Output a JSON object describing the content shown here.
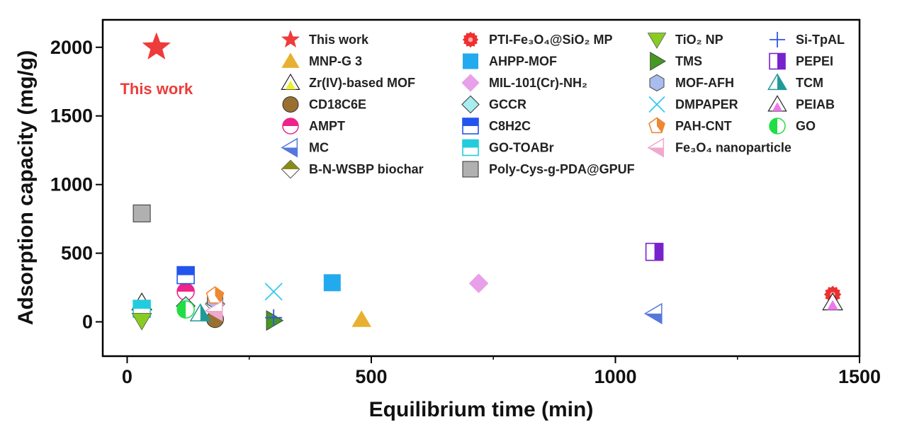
{
  "chart_data": {
    "type": "scatter",
    "xlabel": "Equilibrium time (min)",
    "ylabel": "Adsorption capacity (mg/g)",
    "xlim": [
      -50,
      1500
    ],
    "ylim": [
      -250,
      2200
    ],
    "xticks": [
      0,
      500,
      1000,
      1500
    ],
    "yticks": [
      0,
      500,
      1000,
      1500,
      2000
    ],
    "xtick_labels": [
      "0",
      "500",
      "1000",
      "1500"
    ],
    "ytick_labels": [
      "0",
      "500",
      "1000",
      "1500",
      "2000"
    ],
    "x_minor_ticks": [
      250,
      750,
      1250
    ],
    "grid": false,
    "legend_position": "inside-top",
    "annotation": {
      "text": "This work",
      "x": 60,
      "y": 1700,
      "color": "#ee3b3b"
    },
    "series": [
      {
        "name": "This work",
        "marker": "star",
        "color": "#ee3b3b",
        "points": [
          [
            60,
            2000
          ]
        ]
      },
      {
        "name": "MNP-G 3",
        "marker": "triangle-up",
        "color": "#e8b030",
        "points": [
          [
            480,
            15
          ]
        ]
      },
      {
        "name": "Zr(IV)-based MOF",
        "marker": "triangle-up-open",
        "color": "#eeee33",
        "points": [
          [
            30,
            140
          ]
        ]
      },
      {
        "name": "CD18C6E",
        "marker": "circle",
        "color": "#9a7030",
        "points": [
          [
            180,
            20
          ]
        ]
      },
      {
        "name": "AMPT",
        "marker": "circle-half",
        "color": "#ee2288",
        "points": [
          [
            120,
            220
          ]
        ]
      },
      {
        "name": "MC",
        "marker": "triangle-left",
        "color": "#5577dd",
        "points": [
          [
            1080,
            60
          ]
        ]
      },
      {
        "name": "B-N-WSBP biochar",
        "marker": "diamond-half",
        "color": "#8a8a1a",
        "points": [
          [
            180,
            130
          ]
        ]
      },
      {
        "name": "PTI-Fe₃O₄@SiO₂ MP",
        "marker": "circle-spiky",
        "color": "#ee3030",
        "points": [
          [
            1445,
            200
          ]
        ]
      },
      {
        "name": "AHPP-MOF",
        "marker": "square",
        "color": "#22aaee",
        "points": [
          [
            420,
            285
          ]
        ]
      },
      {
        "name": "MIL-101(Cr)-NH₂",
        "marker": "diamond",
        "color": "#e8a0e8",
        "points": [
          [
            720,
            280
          ]
        ]
      },
      {
        "name": "GCCR",
        "marker": "diamond-light",
        "color": "#a8eeee",
        "points": [
          [
            120,
            115
          ]
        ]
      },
      {
        "name": "C8H2C",
        "marker": "square-half",
        "color": "#2255ee",
        "points": [
          [
            120,
            340
          ]
        ]
      },
      {
        "name": "GO-TOABr",
        "marker": "square-half",
        "color": "#22ccdd",
        "points": [
          [
            30,
            95
          ]
        ]
      },
      {
        "name": "Poly-Cys-g-PDA@GPUF",
        "marker": "square",
        "color": "#b0b0b0",
        "points": [
          [
            30,
            790
          ]
        ]
      },
      {
        "name": "TiO₂ NP",
        "marker": "triangle-down",
        "color": "#88cc22",
        "points": [
          [
            30,
            10
          ]
        ]
      },
      {
        "name": "TMS",
        "marker": "triangle-right",
        "color": "#449922",
        "points": [
          [
            300,
            10
          ]
        ]
      },
      {
        "name": "MOF-AFH",
        "marker": "hexagon",
        "color": "#aabbee",
        "points": [
          [
            180,
            160
          ]
        ]
      },
      {
        "name": "DMPAPER",
        "marker": "x",
        "color": "#33ccee",
        "points": [
          [
            300,
            220
          ]
        ]
      },
      {
        "name": "PAH-CNT",
        "marker": "pentagon",
        "color": "#ee8833",
        "points": [
          [
            180,
            190
          ]
        ]
      },
      {
        "name": "Fe₃O₄ nanoparticle",
        "marker": "triangle-left",
        "color": "#eeaacc",
        "points": [
          [
            180,
            80
          ]
        ]
      },
      {
        "name": "Si-TpAL",
        "marker": "plus",
        "color": "#3355dd",
        "points": [
          [
            300,
            30
          ]
        ]
      },
      {
        "name": "PEPEI",
        "marker": "square-vhalf",
        "color": "#7722cc",
        "points": [
          [
            1080,
            510
          ]
        ]
      },
      {
        "name": "TCM",
        "marker": "triangle-half",
        "color": "#229999",
        "points": [
          [
            150,
            60
          ]
        ]
      },
      {
        "name": "PEIAB",
        "marker": "triangle-up-open",
        "color": "#ee77ee",
        "points": [
          [
            1445,
            140
          ]
        ]
      },
      {
        "name": "GO",
        "marker": "circle-vhalf",
        "color": "#22dd44",
        "points": [
          [
            120,
            90
          ]
        ]
      }
    ]
  }
}
